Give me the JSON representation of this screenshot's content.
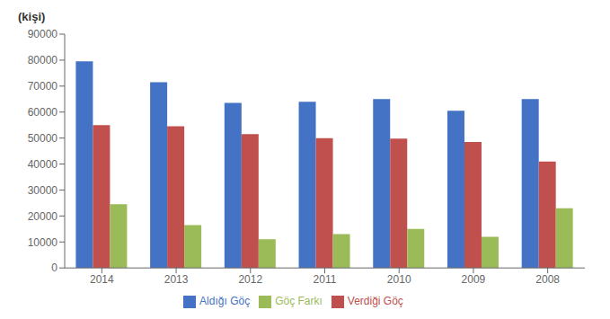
{
  "chart_data": {
    "type": "bar",
    "annotation": "(kişi)",
    "categories": [
      "2014",
      "2013",
      "2012",
      "2011",
      "2010",
      "2009",
      "2008"
    ],
    "series": [
      {
        "name": "Aldığı Göç",
        "color": "#4472C4",
        "values": [
          79500,
          71500,
          63500,
          64000,
          65000,
          60500,
          65000
        ]
      },
      {
        "name": "Verdiği Göç",
        "color": "#C0504D",
        "values": [
          55000,
          54500,
          51500,
          50000,
          49800,
          48500,
          41000
        ]
      },
      {
        "name": "Göç Farkı",
        "color": "#9BBB59",
        "values": [
          24500,
          16500,
          11000,
          13000,
          15000,
          12000,
          23000
        ]
      }
    ],
    "ylim": [
      0,
      90000
    ],
    "yticks": [
      0,
      10000,
      20000,
      30000,
      40000,
      50000,
      60000,
      70000,
      80000,
      90000
    ],
    "grid": false,
    "legend": "bottom"
  }
}
